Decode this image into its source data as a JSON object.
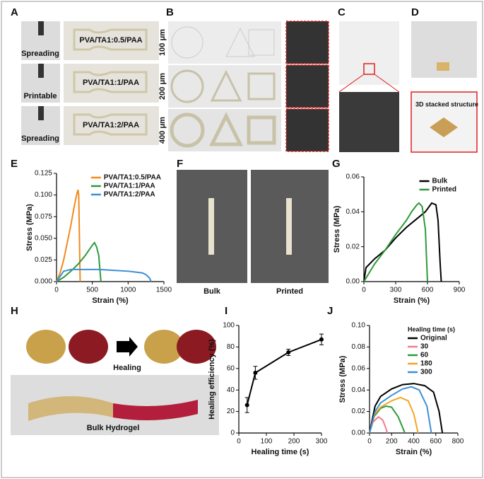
{
  "figure": {
    "panel_labels": [
      "A",
      "B",
      "C",
      "D",
      "E",
      "F",
      "G",
      "H",
      "I",
      "J"
    ],
    "a": {
      "modes": [
        "Spreading",
        "Printable",
        "Spreading"
      ],
      "materials": [
        "PVA/TA1:0.5/PAA",
        "PVA/TA1:1/PAA",
        "PVA/TA1:2/PAA"
      ]
    },
    "b": {
      "line_widths": [
        "100 μm",
        "200 μm",
        "400 μm"
      ]
    },
    "d": {
      "caption": "3D stacked structure"
    },
    "f": {
      "captions": [
        "Bulk",
        "Printed"
      ]
    },
    "h": {
      "arrow_label": "Healing",
      "caption": "Bulk Hydrogel"
    }
  },
  "chart_data": [
    {
      "type": "line",
      "x_label": "Strain (%)",
      "y_label": "Stress (MPa)",
      "legend": "upper right",
      "xlim": [
        0,
        1500
      ],
      "xticks": [
        0,
        500,
        1000,
        1500
      ],
      "ylim": [
        0,
        0.125
      ],
      "yticks": [
        {
          "value": 0,
          "label": "0.000"
        },
        {
          "value": 0.025,
          "label": "0.025"
        },
        {
          "value": 0.05,
          "label": "0.050"
        },
        {
          "value": 0.075,
          "label": "0.075"
        },
        {
          "value": 0.1,
          "label": "0.100"
        },
        {
          "value": 0.125,
          "label": "0.125"
        }
      ],
      "series": [
        {
          "name": "PVA/TA1:0.5/PAA",
          "color": "#f28a1e",
          "x": [
            0,
            50,
            100,
            150,
            200,
            250,
            280,
            300,
            310,
            320,
            330
          ],
          "values": [
            0,
            0.01,
            0.025,
            0.045,
            0.065,
            0.088,
            0.1,
            0.106,
            0.1,
            0.05,
            0
          ]
        },
        {
          "name": "PVA/TA1:1/PAA",
          "color": "#2e9a3a",
          "x": [
            0,
            100,
            200,
            300,
            400,
            450,
            500,
            530,
            560,
            590,
            610,
            620
          ],
          "values": [
            0,
            0.005,
            0.012,
            0.02,
            0.03,
            0.036,
            0.042,
            0.045,
            0.04,
            0.03,
            0.01,
            0
          ]
        },
        {
          "name": "PVA/TA1:2/PAA",
          "color": "#3d8fd6",
          "x": [
            0,
            100,
            200,
            400,
            600,
            800,
            1000,
            1100,
            1200,
            1250,
            1300,
            1320
          ],
          "values": [
            0,
            0.012,
            0.014,
            0.014,
            0.014,
            0.013,
            0.012,
            0.011,
            0.01,
            0.008,
            0.004,
            0
          ]
        }
      ]
    },
    {
      "type": "line",
      "x_label": "Strain (%)",
      "y_label": "Stress (MPa)",
      "legend": "upper right",
      "xlim": [
        0,
        900
      ],
      "xticks": [
        0,
        300,
        600,
        900
      ],
      "ylim": [
        0,
        0.06
      ],
      "yticks": [
        {
          "value": 0,
          "label": "0.00"
        },
        {
          "value": 0.02,
          "label": "0.02"
        },
        {
          "value": 0.04,
          "label": "0.04"
        },
        {
          "value": 0.06,
          "label": "0.06"
        }
      ],
      "series": [
        {
          "name": "Bulk",
          "color": "#000000",
          "x": [
            0,
            20,
            100,
            200,
            300,
            400,
            500,
            580,
            640,
            680,
            700,
            720,
            730
          ],
          "values": [
            0,
            0.008,
            0.013,
            0.018,
            0.025,
            0.031,
            0.036,
            0.04,
            0.045,
            0.044,
            0.035,
            0.01,
            0
          ]
        },
        {
          "name": "Printed",
          "color": "#2e9a3a",
          "x": [
            0,
            50,
            100,
            200,
            300,
            400,
            450,
            500,
            520,
            550,
            580,
            600
          ],
          "values": [
            0,
            0.005,
            0.01,
            0.018,
            0.027,
            0.035,
            0.04,
            0.044,
            0.045,
            0.043,
            0.03,
            0
          ]
        }
      ]
    },
    {
      "type": "errorline",
      "x_label": "Healing time (s)",
      "y_label": "Healing efficiency (%)",
      "xlim": [
        0,
        300
      ],
      "xticks": [
        0,
        100,
        200,
        300
      ],
      "ylim": [
        0,
        100
      ],
      "yticks": [
        0,
        20,
        40,
        60,
        80,
        100
      ],
      "series": [
        {
          "color": "#000000",
          "x": [
            30,
            60,
            180,
            300
          ],
          "values": [
            26,
            56,
            75,
            87
          ],
          "errors": [
            7,
            6,
            3,
            5
          ]
        }
      ]
    },
    {
      "type": "line",
      "x_label": "Strain (%)",
      "y_label": "Stress (MPa)",
      "legend": "upper right",
      "legend_title": "Healing time (s)",
      "xlim": [
        0,
        800
      ],
      "xticks": [
        0,
        200,
        400,
        600,
        800
      ],
      "ylim": [
        0,
        0.1
      ],
      "yticks": [
        {
          "value": 0,
          "label": "0.00"
        },
        {
          "value": 0.02,
          "label": "0.02"
        },
        {
          "value": 0.04,
          "label": "0.04"
        },
        {
          "value": 0.06,
          "label": "0.06"
        },
        {
          "value": 0.08,
          "label": "0.08"
        },
        {
          "value": 0.1,
          "label": "0.10"
        }
      ],
      "series": [
        {
          "name": "Original",
          "color": "#000000",
          "x": [
            0,
            50,
            100,
            200,
            300,
            400,
            500,
            580,
            630,
            660
          ],
          "values": [
            0,
            0.025,
            0.034,
            0.041,
            0.045,
            0.046,
            0.044,
            0.038,
            0.02,
            0
          ]
        },
        {
          "name": "30",
          "color": "#f07c8f",
          "x": [
            0,
            30,
            80,
            120,
            150,
            160
          ],
          "values": [
            0,
            0.01,
            0.015,
            0.012,
            0.004,
            0
          ]
        },
        {
          "name": "60",
          "color": "#2e9a3a",
          "x": [
            0,
            40,
            100,
            150,
            200,
            260,
            300,
            320
          ],
          "values": [
            0,
            0.015,
            0.023,
            0.025,
            0.024,
            0.015,
            0.005,
            0
          ]
        },
        {
          "name": "180",
          "color": "#f5a623",
          "x": [
            0,
            50,
            100,
            200,
            280,
            350,
            400,
            440
          ],
          "values": [
            0,
            0.018,
            0.024,
            0.03,
            0.033,
            0.03,
            0.018,
            0
          ]
        },
        {
          "name": "300",
          "color": "#3d8fd6",
          "x": [
            0,
            50,
            100,
            200,
            300,
            380,
            450,
            520,
            560
          ],
          "values": [
            0,
            0.02,
            0.028,
            0.035,
            0.041,
            0.043,
            0.04,
            0.025,
            0
          ]
        }
      ]
    }
  ]
}
